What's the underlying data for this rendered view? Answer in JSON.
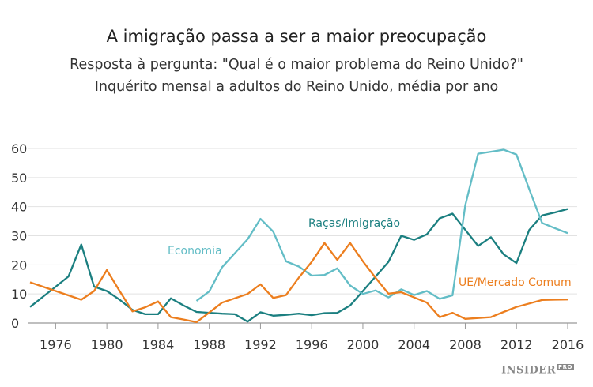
{
  "chart_data": {
    "type": "line",
    "title": "A imigração passa a ser a maior preocupação",
    "subtitle": [
      "Resposta à pergunta: \"Qual é o maior problema do Reino Unido?\"",
      "Inquérito mensal a adultos do Reino Unido, média por ano"
    ],
    "xlabel": "",
    "ylabel": "",
    "ylim": [
      0,
      60
    ],
    "xlim": [
      1974,
      2016
    ],
    "yticks": [
      "0",
      "10",
      "20",
      "30",
      "40",
      "50",
      "60"
    ],
    "xticks": [
      "1976",
      "1980",
      "1984",
      "1988",
      "1992",
      "1996",
      "2000",
      "2004",
      "2008",
      "2012",
      "2016"
    ],
    "grid": true,
    "series": [
      {
        "name": "Raças/Imigração",
        "color": "#1b7f80",
        "x": [
          1974,
          1975,
          1976,
          1977,
          1978,
          1979,
          1980,
          1981,
          1982,
          1983,
          1984,
          1985,
          1986,
          1987,
          1988,
          1989,
          1990,
          1991,
          1992,
          1993,
          1994,
          1995,
          1996,
          1997,
          1998,
          1999,
          2000,
          2001,
          2002,
          2003,
          2004,
          2005,
          2006,
          2007,
          2008,
          2009,
          2010,
          2011,
          2012,
          2013,
          2014,
          2015,
          2016
        ],
        "y": [
          5.5,
          9,
          12.5,
          16,
          27,
          12.5,
          11,
          8,
          4.5,
          3,
          3,
          8.5,
          6,
          3.8,
          3.5,
          3.2,
          3,
          0.5,
          3.7,
          2.5,
          2.8,
          3.2,
          2.7,
          3.4,
          3.5,
          6,
          11,
          16,
          21,
          30,
          28.6,
          30.5,
          36,
          37.6,
          32,
          26.5,
          29.5,
          23.6,
          20.6,
          32,
          37,
          38,
          39.2
        ]
      },
      {
        "name": "Economia",
        "color": "#63bdc6",
        "x": [
          1987,
          1988,
          1989,
          1990,
          1991,
          1992,
          1993,
          1994,
          1995,
          1996,
          1997,
          1998,
          1999,
          2000,
          2001,
          2002,
          2003,
          2004,
          2005,
          2006,
          2007,
          2008,
          2009,
          2010,
          2011,
          2012,
          2013,
          2014,
          2015,
          2016
        ],
        "y": [
          7.6,
          10.9,
          19.2,
          24,
          28.8,
          35.8,
          31.4,
          21.2,
          19.4,
          16.3,
          16.5,
          18.8,
          12.9,
          10,
          11.2,
          8.8,
          11.6,
          9.6,
          11,
          8.3,
          9.5,
          40.5,
          58.2,
          58.9,
          59.6,
          57.9,
          46,
          34.4,
          32.6,
          30.9
        ]
      },
      {
        "name": "UE/Mercado Comum",
        "color": "#ec7e1e",
        "x": [
          1974,
          1975,
          1976,
          1977,
          1978,
          1979,
          1980,
          1981,
          1982,
          1983,
          1984,
          1985,
          1986,
          1987,
          1988,
          1989,
          1990,
          1991,
          1992,
          1993,
          1994,
          1995,
          1996,
          1997,
          1998,
          1999,
          2000,
          2001,
          2002,
          2003,
          2004,
          2005,
          2006,
          2007,
          2008,
          2009,
          2010,
          2011,
          2012,
          2013,
          2014,
          2015,
          2016
        ],
        "y": [
          14,
          12.5,
          11,
          9.5,
          8,
          11,
          18.2,
          11,
          4,
          5.4,
          7.4,
          2,
          1.2,
          0.3,
          3.6,
          7,
          8.5,
          10,
          13.3,
          8.6,
          9.6,
          15.6,
          21,
          27.5,
          21.7,
          27.5,
          21.2,
          15.5,
          10.1,
          10.6,
          8.8,
          7,
          2,
          3.5,
          1.4,
          1.7,
          2,
          3.8,
          5.5,
          6.7,
          7.9,
          8,
          8.1
        ]
      }
    ]
  },
  "logo": {
    "main": "INSIDER",
    "badge": "PRO"
  }
}
